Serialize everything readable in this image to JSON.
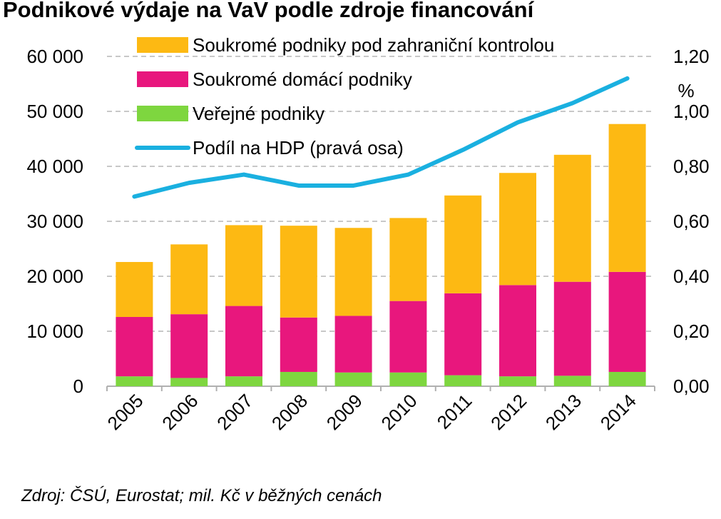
{
  "title": "Podnikové výdaje na VaV podle zdroje financování",
  "source": "Zdroj: ČSÚ, Eurostat; mil. Kč v běžných cenách",
  "chart_data": {
    "type": "bar",
    "stacked": true,
    "categories": [
      "2005",
      "2006",
      "2007",
      "2008",
      "2009",
      "2010",
      "2011",
      "2012",
      "2013",
      "2014"
    ],
    "series": [
      {
        "name": "Veřejné podniky",
        "type": "bar",
        "axis": "left",
        "color": "#7ed63f",
        "values": [
          1800,
          1500,
          1800,
          2600,
          2500,
          2500,
          2000,
          1800,
          1900,
          2600
        ]
      },
      {
        "name": "Soukromé domácí podniky",
        "type": "bar",
        "axis": "left",
        "color": "#e8177d",
        "values": [
          10800,
          11600,
          12800,
          9900,
          10300,
          13000,
          14900,
          16600,
          17100,
          18200
        ]
      },
      {
        "name": "Soukromé podniky pod zahraniční kontrolou",
        "type": "bar",
        "axis": "left",
        "color": "#fdb913",
        "values": [
          10000,
          12700,
          14700,
          16700,
          16000,
          15100,
          17800,
          20400,
          23100,
          26900
        ]
      },
      {
        "name": "Podíl na HDP (pravá osa)",
        "type": "line",
        "axis": "right",
        "color": "#1ab0e0",
        "values": [
          0.69,
          0.74,
          0.77,
          0.73,
          0.73,
          0.77,
          0.86,
          0.96,
          1.03,
          1.12
        ]
      }
    ],
    "legend_order": [
      "Soukromé podniky pod zahraniční kontrolou",
      "Soukromé domácí podniky",
      "Veřejné podniky",
      "Podíl na HDP (pravá osa)"
    ],
    "legend_position": "top-left",
    "y_left": {
      "range": [
        0,
        60000
      ],
      "ticks": [
        "0",
        "10 000",
        "20 000",
        "30 000",
        "40 000",
        "50 000",
        "60 000"
      ]
    },
    "y_right": {
      "range": [
        0,
        1.2
      ],
      "label": "%",
      "ticks": [
        "0,00",
        "0,20",
        "0,40",
        "0,60",
        "0,80",
        "1,00",
        "1,20"
      ]
    },
    "grid": true
  }
}
